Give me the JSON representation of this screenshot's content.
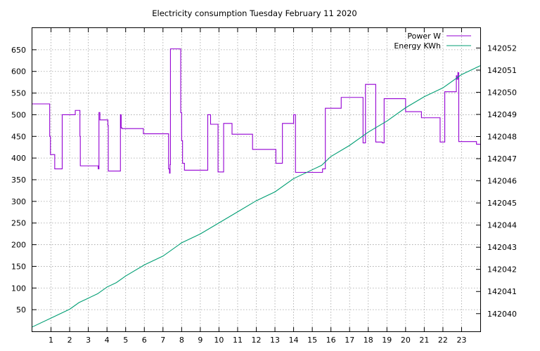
{
  "chart_data": {
    "type": "line",
    "title": "Electricity consumption Tuesday February 11 2020",
    "xlabel": "",
    "ylabel": "",
    "y2label": "",
    "xlim": [
      0,
      24
    ],
    "ylim": [
      0,
      700
    ],
    "y2lim": [
      142039.2,
      142052.9
    ],
    "x_ticks": [
      1,
      2,
      3,
      4,
      5,
      6,
      7,
      8,
      9,
      10,
      11,
      12,
      13,
      14,
      15,
      16,
      17,
      18,
      19,
      20,
      21,
      22,
      23
    ],
    "y_ticks": [
      50,
      100,
      150,
      200,
      250,
      300,
      350,
      400,
      450,
      500,
      550,
      600,
      650
    ],
    "y2_ticks": [
      142040,
      142041,
      142042,
      142043,
      142044,
      142045,
      142046,
      142047,
      142048,
      142049,
      142050,
      142051,
      142052
    ],
    "grid": true,
    "legend_position": "top-right",
    "series": [
      {
        "name": "Power W",
        "axis": "left",
        "color": "#9400d3",
        "step": true,
        "x": [
          0,
          0.93,
          0.97,
          1.2,
          1.6,
          2.3,
          2.55,
          2.57,
          2.6,
          3.53,
          3.57,
          3.62,
          4.05,
          4.07,
          4.1,
          4.72,
          4.76,
          4.8,
          5.95,
          7.3,
          7.35,
          7.38,
          7.4,
          7.42,
          7.95,
          8.0,
          8.05,
          8.1,
          8.15,
          8.3,
          9.4,
          9.55,
          9.95,
          10.0,
          10.25,
          10.7,
          11.8,
          13.05,
          13.4,
          14.0,
          14.1,
          15.55,
          15.7,
          16.55,
          17.72,
          17.85,
          18.4,
          18.75,
          18.85,
          20.0,
          20.85,
          21.85,
          21.9,
          22.1,
          22.72,
          22.75,
          22.8,
          22.85,
          23.8,
          24.0
        ],
        "y": [
          525,
          450,
          408,
          375,
          500,
          510,
          450,
          382,
          382,
          375,
          505,
          488,
          475,
          370,
          370,
          500,
          470,
          468,
          456,
          375,
          365,
          385,
          652,
          652,
          505,
          440,
          388,
          388,
          372,
          372,
          500,
          478,
          368,
          368,
          480,
          455,
          420,
          388,
          480,
          500,
          367,
          375,
          515,
          540,
          435,
          570,
          437,
          435,
          537,
          507,
          493,
          437,
          437,
          553,
          590,
          582,
          597,
          438,
          432,
          432
        ]
      },
      {
        "name": "Energy KWh",
        "axis": "right",
        "color": "#009e73",
        "step": false,
        "x": [
          0,
          1,
          2,
          2.5,
          3,
          3.5,
          4,
          4.5,
          5,
          6,
          7,
          8,
          9,
          10,
          11,
          12,
          13,
          14,
          15,
          15.5,
          16,
          17,
          18,
          19,
          20,
          21,
          22,
          23,
          24
        ],
        "y": [
          142039.4,
          142039.8,
          142040.2,
          142040.5,
          142040.7,
          142040.9,
          142041.2,
          142041.4,
          142041.7,
          142042.2,
          142042.6,
          142043.2,
          142043.6,
          142044.1,
          142044.6,
          142045.1,
          142045.5,
          142046.1,
          142046.5,
          142046.7,
          142047.1,
          142047.6,
          142048.2,
          142048.7,
          142049.3,
          142049.8,
          142050.2,
          142050.8,
          142051.2
        ]
      }
    ]
  }
}
